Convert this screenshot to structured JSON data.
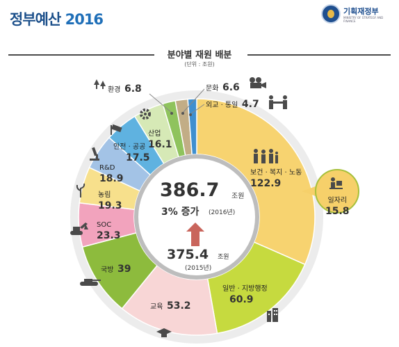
{
  "header": {
    "title": "정부예산",
    "year": "2016",
    "logo_name": "기획재정부",
    "logo_sub": "MINISTRY OF STRATEGY AND FINANCE"
  },
  "chart_data": {
    "type": "pie",
    "title": "분야별 재원 배분",
    "unit": "(단위 : 조원)",
    "center": {
      "total": "386.7",
      "total_unit": "조원",
      "growth": "3% 증가",
      "growth_year": "(2016년)",
      "prev": "375.4",
      "prev_unit": "조원",
      "prev_year": "(2015년)"
    },
    "segments": [
      {
        "name": "보건 · 복지 · 노동",
        "value": 122.9,
        "color": "#f7d370"
      },
      {
        "name": "일반 · 지방행정",
        "value": 60.9,
        "color": "#c6da3f"
      },
      {
        "name": "교육",
        "value": 53.2,
        "color": "#f8d6d6"
      },
      {
        "name": "국방",
        "value": 39,
        "color": "#8dbb3d"
      },
      {
        "name": "SOC",
        "value": 23.3,
        "color": "#f2a3bd"
      },
      {
        "name": "농림",
        "value": 19.3,
        "color": "#f7e08c"
      },
      {
        "name": "R&D",
        "value": 18.9,
        "color": "#a3c3e6"
      },
      {
        "name": "안전 · 공공",
        "value": 17.5,
        "color": "#5fb2e0"
      },
      {
        "name": "산업",
        "value": 16.1,
        "color": "#d6e9b6"
      },
      {
        "name": "환경",
        "value": 6.8,
        "color": "#8fc35d"
      },
      {
        "name": "문화",
        "value": 6.6,
        "color": "#c2ad86"
      },
      {
        "name": "외교 · 통일",
        "value": 4.7,
        "color": "#3f8fcf"
      }
    ],
    "sub_item": {
      "name": "일자리",
      "value": 15.8,
      "color": "#f6d06a"
    }
  }
}
